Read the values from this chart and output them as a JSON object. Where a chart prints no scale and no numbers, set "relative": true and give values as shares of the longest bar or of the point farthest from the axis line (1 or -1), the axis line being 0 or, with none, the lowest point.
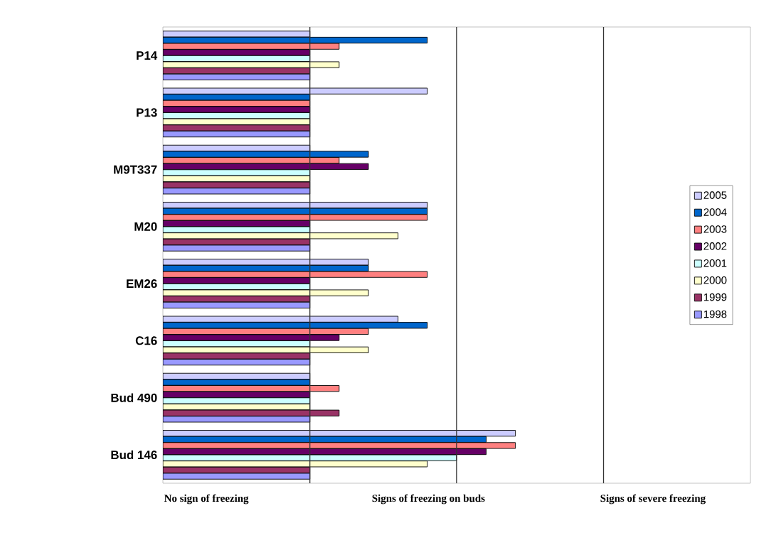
{
  "chart_data": {
    "type": "bar",
    "orientation": "horizontal",
    "relative": true,
    "categories": [
      "P14",
      "P13",
      "M9T337",
      "M20",
      "EM26",
      "C16",
      "Bud 490",
      "Bud 146"
    ],
    "series": [
      {
        "name": "2005",
        "color": "#ccccff",
        "values": [
          0.417,
          0.75,
          0.417,
          0.75,
          0.583,
          0.667,
          0.417,
          1
        ]
      },
      {
        "name": "2004",
        "color": "#0066cc",
        "values": [
          0.75,
          0.417,
          0.583,
          0.75,
          0.583,
          0.75,
          0.417,
          0.917
        ]
      },
      {
        "name": "2003",
        "color": "#ff8080",
        "values": [
          0.5,
          0.417,
          0.5,
          0.75,
          0.75,
          0.583,
          0.5,
          1
        ]
      },
      {
        "name": "2002",
        "color": "#660066",
        "values": [
          0.417,
          0.417,
          0.583,
          0.417,
          0.417,
          0.5,
          0.417,
          0.917
        ]
      },
      {
        "name": "2001",
        "color": "#ccffff",
        "values": [
          0.417,
          0.417,
          0.417,
          0.417,
          0.417,
          0.417,
          0.417,
          0.833
        ]
      },
      {
        "name": "2000",
        "color": "#ffffcc",
        "values": [
          0.5,
          0.417,
          0.417,
          0.667,
          0.583,
          0.583,
          0.417,
          0.75
        ]
      },
      {
        "name": "1999",
        "color": "#993366",
        "values": [
          0.417,
          0.417,
          0.417,
          0.417,
          0.417,
          0.417,
          0.5,
          0.417
        ]
      },
      {
        "name": "1998",
        "color": "#9999ff",
        "values": [
          0.417,
          0.417,
          0.417,
          0.417,
          0.417,
          0.417,
          0.417,
          0.417
        ]
      }
    ],
    "annotations": [
      "No sign of freezing",
      "Signs of freezing on buds",
      "Signs of severe freezing"
    ],
    "ref_lines": [
      {
        "axis": "x",
        "value": 0.417,
        "color": "#333333"
      },
      {
        "axis": "x",
        "value": 0.833,
        "color": "#333333"
      },
      {
        "axis": "x",
        "value": 1.25,
        "color": "#333333"
      }
    ],
    "legend": "right"
  }
}
